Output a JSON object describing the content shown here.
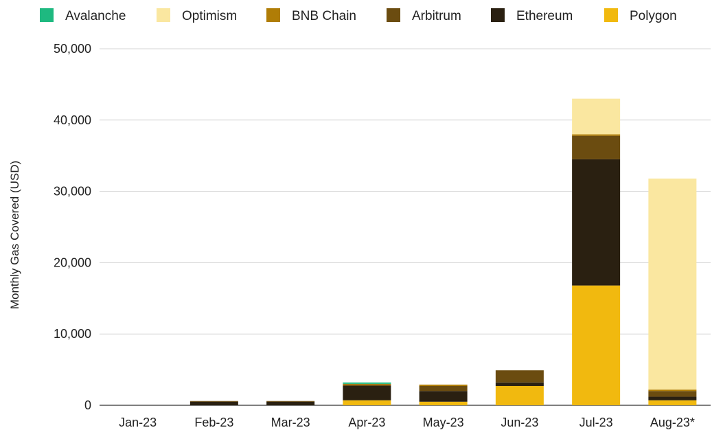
{
  "chart_data": {
    "type": "bar",
    "stacked": true,
    "title": "",
    "xlabel": "",
    "ylabel": "Monthly Gas Covered (USD)",
    "ylim": [
      0,
      50000
    ],
    "yticks": [
      0,
      10000,
      20000,
      30000,
      40000,
      50000
    ],
    "ytick_labels": [
      "0",
      "10,000",
      "20,000",
      "30,000",
      "40,000",
      "50,000"
    ],
    "grid": true,
    "legend_position": "top",
    "categories": [
      "Jan-23",
      "Feb-23",
      "Mar-23",
      "Apr-23",
      "May-23",
      "Jun-23",
      "Jul-23",
      "Aug-23*"
    ],
    "stack_order": [
      "Polygon",
      "Ethereum",
      "Arbitrum",
      "BNB Chain",
      "Optimism",
      "Avalanche"
    ],
    "legend_order": [
      "Avalanche",
      "Optimism",
      "BNB Chain",
      "Arbitrum",
      "Ethereum",
      "Polygon"
    ],
    "series": [
      {
        "name": "Polygon",
        "color": "#F1B90F",
        "values": [
          0,
          0,
          0,
          700,
          500,
          2700,
          16800,
          700
        ]
      },
      {
        "name": "Ethereum",
        "color": "#2A2011",
        "values": [
          0,
          500,
          500,
          2000,
          1500,
          500,
          17700,
          500
        ]
      },
      {
        "name": "Arbitrum",
        "color": "#6B4C10",
        "values": [
          0,
          100,
          100,
          200,
          700,
          1700,
          3300,
          800
        ]
      },
      {
        "name": "BNB Chain",
        "color": "#B07D06",
        "values": [
          0,
          0,
          0,
          100,
          200,
          0,
          200,
          200
        ]
      },
      {
        "name": "Optimism",
        "color": "#FAE7A0",
        "values": [
          0,
          0,
          0,
          0,
          0,
          0,
          5000,
          29600
        ]
      },
      {
        "name": "Avalanche",
        "color": "#1EB980",
        "values": [
          0,
          0,
          0,
          200,
          0,
          0,
          0,
          0
        ]
      }
    ]
  }
}
